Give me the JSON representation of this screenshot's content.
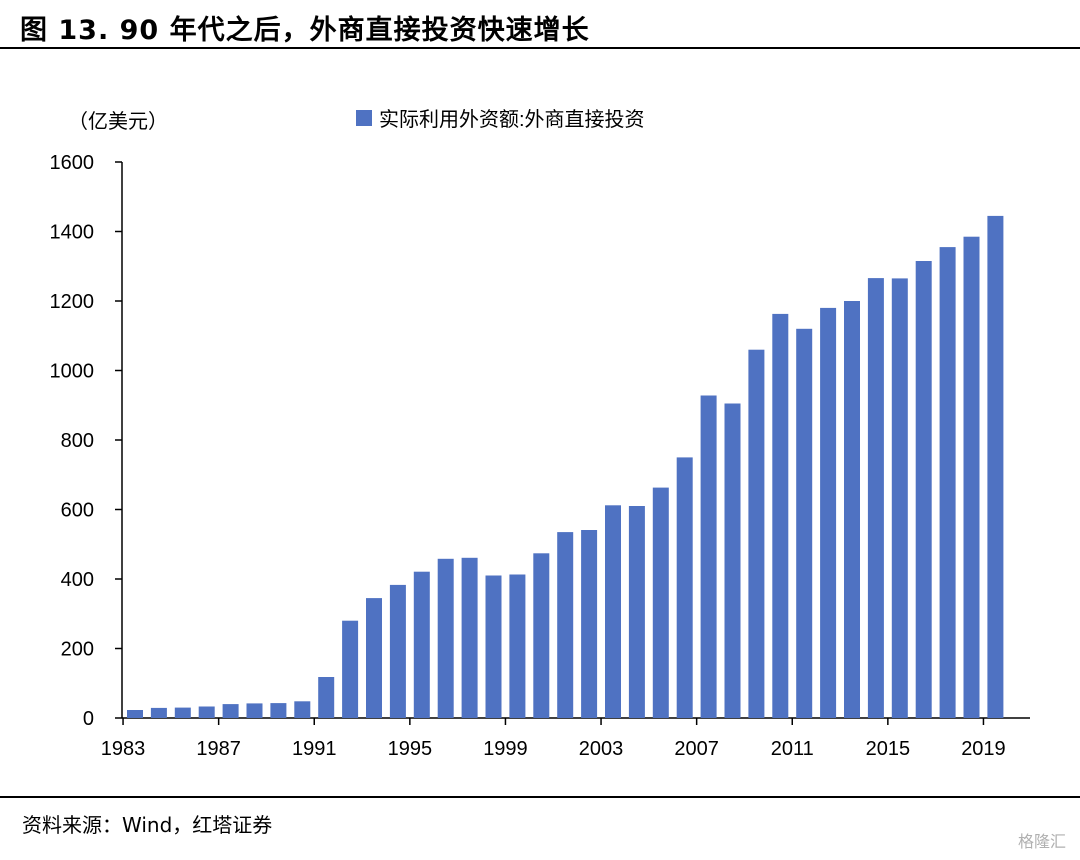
{
  "header": {
    "title": "图 13. 90 年代之后，外商直接投资快速增长"
  },
  "footer": {
    "source": "资料来源：Wind，红塔证券",
    "watermark": "格隆汇"
  },
  "chart_data": {
    "type": "bar",
    "title": "",
    "unit_label": "（亿美元）",
    "legend": [
      "实际利用外资额:外商直接投资"
    ],
    "legend_position": "top",
    "color": "#4F72C2",
    "ylim": [
      0,
      1600
    ],
    "y_ticks": [
      0,
      200,
      400,
      600,
      800,
      1000,
      1200,
      1400,
      1600
    ],
    "x_tick_labels": [
      "1983",
      "1987",
      "1991",
      "1995",
      "1999",
      "2003",
      "2007",
      "2011",
      "2015",
      "2019"
    ],
    "categories": [
      "1983",
      "1984",
      "1985",
      "1986",
      "1987",
      "1988",
      "1989",
      "1990",
      "1991",
      "1992",
      "1993",
      "1994",
      "1995",
      "1996",
      "1997",
      "1998",
      "1999",
      "2000",
      "2001",
      "2002",
      "2003",
      "2004",
      "2005",
      "2006",
      "2007",
      "2008",
      "2009",
      "2010",
      "2011",
      "2012",
      "2013",
      "2014",
      "2015",
      "2016",
      "2017",
      "2018",
      "2019"
    ],
    "series": [
      {
        "name": "实际利用外资额:外商直接投资",
        "values": [
          23,
          29,
          30,
          33,
          40,
          42,
          43,
          48,
          118,
          280,
          345,
          383,
          421,
          458,
          461,
          410,
          413,
          474,
          535,
          541,
          612,
          610,
          663,
          750,
          928,
          905,
          1060,
          1163,
          1120,
          1180,
          1200,
          1266,
          1265,
          1315,
          1355,
          1385,
          1445
        ]
      }
    ],
    "grid": false
  }
}
